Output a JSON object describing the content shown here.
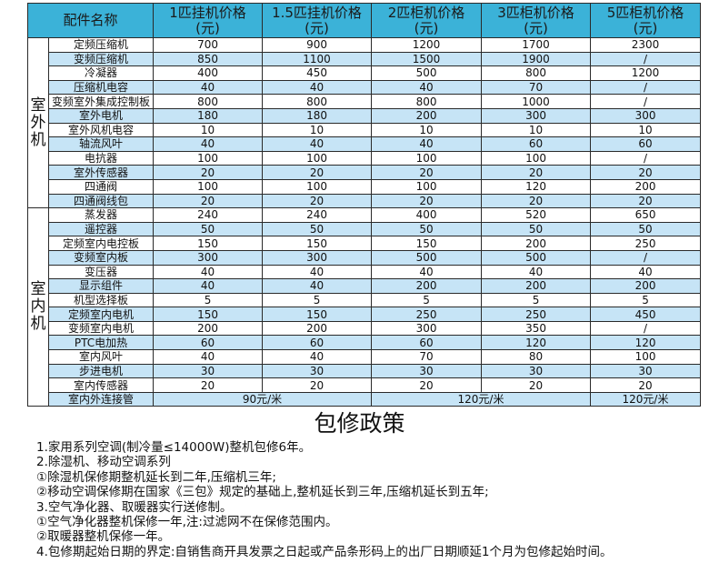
{
  "table": {
    "headers": [
      "配件名称",
      "1匹挂机价格\n(元)",
      "1.5匹挂机价格\n(元)",
      "2匹柜机价格\n(元)",
      "3匹柜机价格\n(元)",
      "5匹柜机价格\n(元)"
    ],
    "groups": [
      {
        "label": "室外机",
        "rows": [
          {
            "name": "定频压缩机",
            "values": [
              "700",
              "900",
              "1200",
              "1700",
              "2300"
            ]
          },
          {
            "name": "变频压缩机",
            "values": [
              "850",
              "1100",
              "1500",
              "1900",
              "/"
            ]
          },
          {
            "name": "冷凝器",
            "values": [
              "400",
              "450",
              "500",
              "800",
              "1200"
            ]
          },
          {
            "name": "压缩机电容",
            "values": [
              "40",
              "40",
              "40",
              "70",
              "/"
            ]
          },
          {
            "name": "变频室外集成控制板",
            "values": [
              "800",
              "800",
              "800",
              "1000",
              "/"
            ]
          },
          {
            "name": "室外电机",
            "values": [
              "180",
              "180",
              "200",
              "300",
              "300"
            ]
          },
          {
            "name": "室外风机电容",
            "values": [
              "10",
              "10",
              "10",
              "10",
              "10"
            ]
          },
          {
            "name": "轴流风叶",
            "values": [
              "40",
              "40",
              "40",
              "60",
              "60"
            ]
          },
          {
            "name": "电抗器",
            "values": [
              "100",
              "100",
              "100",
              "100",
              "/"
            ]
          },
          {
            "name": "室外传感器",
            "values": [
              "20",
              "20",
              "20",
              "20",
              "20"
            ]
          },
          {
            "name": "四通阀",
            "values": [
              "100",
              "100",
              "100",
              "120",
              "200"
            ]
          },
          {
            "name": "四通阀线包",
            "values": [
              "20",
              "20",
              "20",
              "20",
              "20"
            ]
          }
        ]
      },
      {
        "label": "室内机",
        "rows": [
          {
            "name": "蒸发器",
            "values": [
              "240",
              "240",
              "400",
              "520",
              "650"
            ]
          },
          {
            "name": "遥控器",
            "values": [
              "50",
              "50",
              "50",
              "50",
              "50"
            ]
          },
          {
            "name": "定频室内电控板",
            "values": [
              "150",
              "150",
              "150",
              "200",
              "250"
            ]
          },
          {
            "name": "变频室内板",
            "values": [
              "300",
              "300",
              "500",
              "500",
              "/"
            ]
          },
          {
            "name": "变压器",
            "values": [
              "40",
              "40",
              "40",
              "40",
              "40"
            ]
          },
          {
            "name": "显示组件",
            "values": [
              "40",
              "40",
              "200",
              "200",
              "200"
            ]
          },
          {
            "name": "机型选择板",
            "values": [
              "5",
              "5",
              "5",
              "5",
              "5"
            ]
          },
          {
            "name": "定频室内电机",
            "values": [
              "150",
              "150",
              "250",
              "250",
              "450"
            ]
          },
          {
            "name": "变频室内电机",
            "values": [
              "200",
              "200",
              "300",
              "350",
              "/"
            ]
          },
          {
            "name": "PTC电加热",
            "values": [
              "60",
              "60",
              "60",
              "120",
              "120"
            ]
          },
          {
            "name": "室内风叶",
            "values": [
              "40",
              "40",
              "70",
              "80",
              "100"
            ]
          },
          {
            "name": "步进电机",
            "values": [
              "30",
              "30",
              "30",
              "30",
              "30"
            ]
          },
          {
            "name": "室内传感器",
            "values": [
              "20",
              "20",
              "20",
              "20",
              "20"
            ]
          }
        ]
      }
    ],
    "pipe": {
      "name": "室内外连接管",
      "values": [
        "90元/米",
        "120元/米",
        "120元/米"
      ]
    },
    "colors": {
      "header": "#3bb2d8",
      "stripe": "#c6e4f6",
      "border": "#2a2a2a"
    }
  },
  "policy": {
    "title": "包修政策",
    "lines": [
      "1.家用系列空调(制冷量≤14000W)整机包修6年。",
      "2.除湿机、移动空调系列",
      "①除湿机保修期整机延长到二年,压缩机三年;",
      "②移动空调保修期在国家《三包》规定的基础上,整机延长到三年,压缩机延长到五年;",
      "3.空气净化器、取暖器实行送修制。",
      "①空气净化器整机保修一年,注:过滤网不在保修范围内。",
      "②取暖器整机保修一年。",
      "4.包修期起始日期的界定:自销售商开具发票之日起或产品条形码上的出厂日期顺延1个月为包修起始时间。"
    ]
  }
}
